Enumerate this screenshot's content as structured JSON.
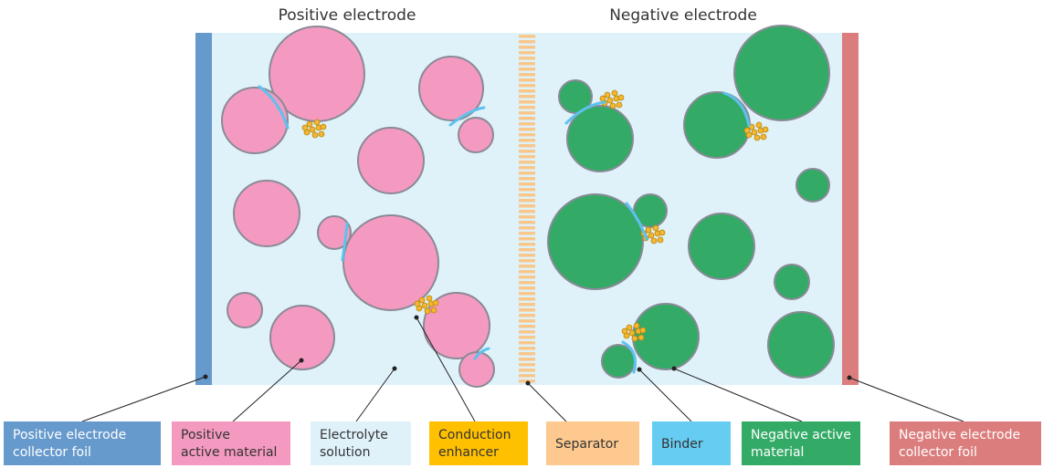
{
  "titles": {
    "positive": "Positive electrode",
    "negative": "Negative electrode"
  },
  "labels": [
    [
      "Positive electrode",
      "collector foil"
    ],
    [
      "Positive",
      "active material"
    ],
    [
      "Electrolyte",
      "solution"
    ],
    [
      "Conduction",
      "enhancer"
    ],
    [
      "Separator"
    ],
    [
      "Binder"
    ],
    [
      "Negative active",
      "material"
    ],
    [
      "Negative electrode",
      "collector foil"
    ]
  ]
}
